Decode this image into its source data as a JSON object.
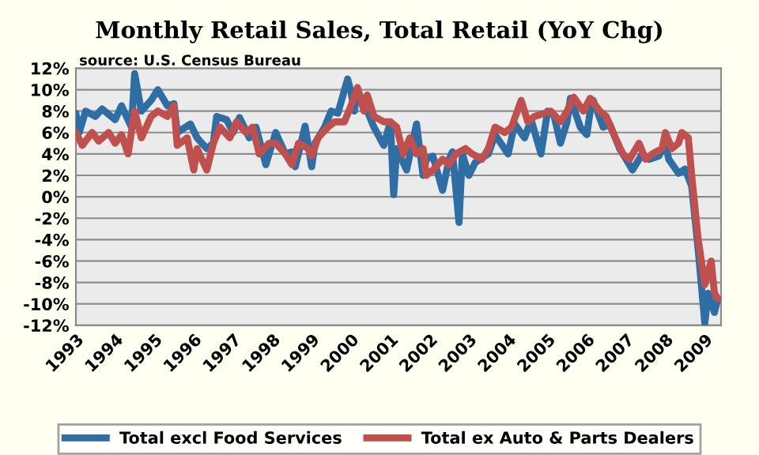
{
  "chart_data": {
    "type": "line",
    "title": "Monthly Retail Sales, Total Retail (YoY Chg)",
    "annotations": [
      "source: U.S. Census Bureau"
    ],
    "xlim": [
      "1993-01",
      "2009-06"
    ],
    "xticks": [
      {
        "value": "1993-01",
        "label": "1993"
      },
      {
        "value": "1994-01",
        "label": "1994"
      },
      {
        "value": "1995-01",
        "label": "1995"
      },
      {
        "value": "1996-01",
        "label": "1996"
      },
      {
        "value": "1997-01",
        "label": "1997"
      },
      {
        "value": "1998-01",
        "label": "1998"
      },
      {
        "value": "1999-01",
        "label": "1999"
      },
      {
        "value": "2000-01",
        "label": "2000"
      },
      {
        "value": "2001-01",
        "label": "2001"
      },
      {
        "value": "2002-01",
        "label": "2002"
      },
      {
        "value": "2003-01",
        "label": "2003"
      },
      {
        "value": "2004-01",
        "label": "2004"
      },
      {
        "value": "2005-01",
        "label": "2005"
      },
      {
        "value": "2006-01",
        "label": "2006"
      },
      {
        "value": "2007-01",
        "label": "2007"
      },
      {
        "value": "2008-01",
        "label": "2008"
      },
      {
        "value": "2009-01",
        "label": "2009"
      }
    ],
    "ylim": [
      -12,
      12
    ],
    "yticks": [
      {
        "value": -12,
        "label": "-12%"
      },
      {
        "value": -10,
        "label": "-10%"
      },
      {
        "value": -8,
        "label": "-8%"
      },
      {
        "value": -6,
        "label": "-6%"
      },
      {
        "value": -4,
        "label": "-4%"
      },
      {
        "value": -2,
        "label": "-2%"
      },
      {
        "value": 0,
        "label": "0%"
      },
      {
        "value": 2,
        "label": "2%"
      },
      {
        "value": 4,
        "label": "4%"
      },
      {
        "value": 6,
        "label": "6%"
      },
      {
        "value": 8,
        "label": "8%"
      },
      {
        "value": 10,
        "label": "10%"
      },
      {
        "value": 12,
        "label": "12%"
      }
    ],
    "grid": "y",
    "legend": "bottom",
    "marker": "none",
    "line_style": "solid",
    "series": [
      {
        "name": "Total excl Food Services",
        "color": "#2f6ea5",
        "x": [
          "1993-01",
          "1993-02",
          "1993-04",
          "1993-07",
          "1993-09",
          "1994-01",
          "1994-03",
          "1994-06",
          "1994-07",
          "1994-09",
          "1994-12",
          "1995-02",
          "1995-05",
          "1995-07",
          "1995-08",
          "1995-12",
          "1996-02",
          "1996-05",
          "1996-07",
          "1996-08",
          "1996-11",
          "1997-01",
          "1997-03",
          "1997-06",
          "1997-08",
          "1997-11",
          "1998-01",
          "1998-02",
          "1998-05",
          "1998-07",
          "1998-08",
          "1998-11",
          "1999-01",
          "1999-02",
          "1999-05",
          "1999-07",
          "1999-09",
          "1999-12",
          "2000-01",
          "2000-02",
          "2000-03",
          "2000-06",
          "2000-08",
          "2000-11",
          "2001-01",
          "2001-02",
          "2001-03",
          "2001-06",
          "2001-09",
          "2001-11",
          "2001-12",
          "2002-02",
          "2002-05",
          "2002-07",
          "2002-08",
          "2002-10",
          "2002-11",
          "2003-01",
          "2003-03",
          "2003-07",
          "2003-09",
          "2004-01",
          "2004-03",
          "2004-06",
          "2004-08",
          "2004-11",
          "2005-01",
          "2005-03",
          "2005-05",
          "2005-07",
          "2005-08",
          "2005-11",
          "2006-01",
          "2006-02",
          "2006-03",
          "2006-06",
          "2006-08",
          "2006-11",
          "2007-01",
          "2007-03",
          "2007-06",
          "2007-08",
          "2007-11",
          "2008-01",
          "2008-02",
          "2008-05",
          "2008-07",
          "2008-09",
          "2008-11",
          "2009-01",
          "2009-02",
          "2009-04",
          "2009-05"
        ],
        "values": [
          7.8,
          6.0,
          8.0,
          7.5,
          8.2,
          7.2,
          8.5,
          6.5,
          11.5,
          8.0,
          9.0,
          10.0,
          8.5,
          8.7,
          6.0,
          6.8,
          5.5,
          4.5,
          5.0,
          7.5,
          7.2,
          6.0,
          7.4,
          5.5,
          6.5,
          3.0,
          5.0,
          6.0,
          4.0,
          4.2,
          2.8,
          6.6,
          2.8,
          5.0,
          6.5,
          8.0,
          7.8,
          11.0,
          9.8,
          8.0,
          10.0,
          8.0,
          6.5,
          4.8,
          7.0,
          0.2,
          4.5,
          2.5,
          6.8,
          2.0,
          3.5,
          3.8,
          0.6,
          3.5,
          4.2,
          -2.4,
          4.0,
          2.0,
          3.2,
          4.0,
          5.8,
          4.0,
          6.8,
          5.5,
          7.2,
          4.0,
          8.0,
          7.6,
          5.0,
          7.0,
          9.2,
          6.5,
          5.8,
          8.0,
          9.0,
          6.5,
          6.8,
          4.5,
          3.5,
          2.5,
          4.0,
          3.5,
          3.8,
          5.0,
          3.5,
          2.2,
          2.6,
          1.0,
          -5.0,
          -11.8,
          -9.0,
          -10.8,
          -9.5
        ]
      },
      {
        "name": "Total ex Auto & Parts Dealers",
        "color": "#c0504d",
        "x": [
          "1993-01",
          "1993-03",
          "1993-06",
          "1993-08",
          "1993-11",
          "1994-01",
          "1994-03",
          "1994-05",
          "1994-07",
          "1994-09",
          "1994-12",
          "1995-02",
          "1995-05",
          "1995-07",
          "1995-08",
          "1995-11",
          "1996-01",
          "1996-02",
          "1996-05",
          "1996-07",
          "1996-09",
          "1996-12",
          "1997-02",
          "1997-05",
          "1997-07",
          "1997-09",
          "1997-12",
          "1998-02",
          "1998-05",
          "1998-07",
          "1998-09",
          "1998-12",
          "1999-01",
          "1999-03",
          "1999-06",
          "1999-08",
          "1999-11",
          "2000-01",
          "2000-03",
          "2000-05",
          "2000-06",
          "2000-08",
          "2000-11",
          "2001-01",
          "2001-03",
          "2001-05",
          "2001-07",
          "2001-09",
          "2001-11",
          "2001-12",
          "2002-02",
          "2002-05",
          "2002-07",
          "2002-09",
          "2002-12",
          "2003-02",
          "2003-05",
          "2003-07",
          "2003-09",
          "2003-12",
          "2004-02",
          "2004-05",
          "2004-07",
          "2004-09",
          "2004-12",
          "2005-02",
          "2005-05",
          "2005-07",
          "2005-09",
          "2005-12",
          "2006-02",
          "2006-05",
          "2006-07",
          "2006-09",
          "2006-12",
          "2007-02",
          "2007-05",
          "2007-07",
          "2007-09",
          "2007-12",
          "2008-01",
          "2008-03",
          "2008-05",
          "2008-06",
          "2008-08",
          "2008-09",
          "2008-11",
          "2009-01",
          "2009-03",
          "2009-04",
          "2009-05"
        ],
        "values": [
          6.0,
          4.8,
          6.0,
          5.2,
          6.0,
          5.0,
          5.8,
          4.0,
          8.0,
          5.5,
          7.5,
          8.0,
          7.5,
          8.5,
          4.8,
          5.5,
          2.5,
          4.5,
          2.5,
          5.0,
          6.5,
          5.5,
          7.0,
          6.0,
          6.5,
          4.0,
          5.0,
          5.0,
          4.0,
          3.0,
          5.0,
          4.5,
          3.8,
          5.5,
          6.5,
          7.0,
          7.0,
          8.5,
          10.2,
          8.0,
          9.5,
          7.5,
          7.0,
          7.0,
          6.5,
          4.0,
          5.5,
          4.0,
          4.5,
          2.0,
          2.5,
          3.5,
          3.0,
          4.0,
          4.5,
          4.0,
          3.5,
          4.5,
          6.5,
          6.0,
          6.5,
          9.0,
          7.0,
          7.5,
          7.8,
          8.0,
          7.0,
          8.0,
          9.3,
          8.0,
          9.2,
          8.0,
          7.5,
          6.0,
          4.0,
          3.5,
          5.0,
          3.5,
          4.0,
          4.5,
          6.0,
          4.5,
          5.0,
          6.0,
          5.5,
          2.0,
          -4.0,
          -8.2,
          -6.0,
          -9.0,
          -9.5
        ]
      }
    ]
  }
}
